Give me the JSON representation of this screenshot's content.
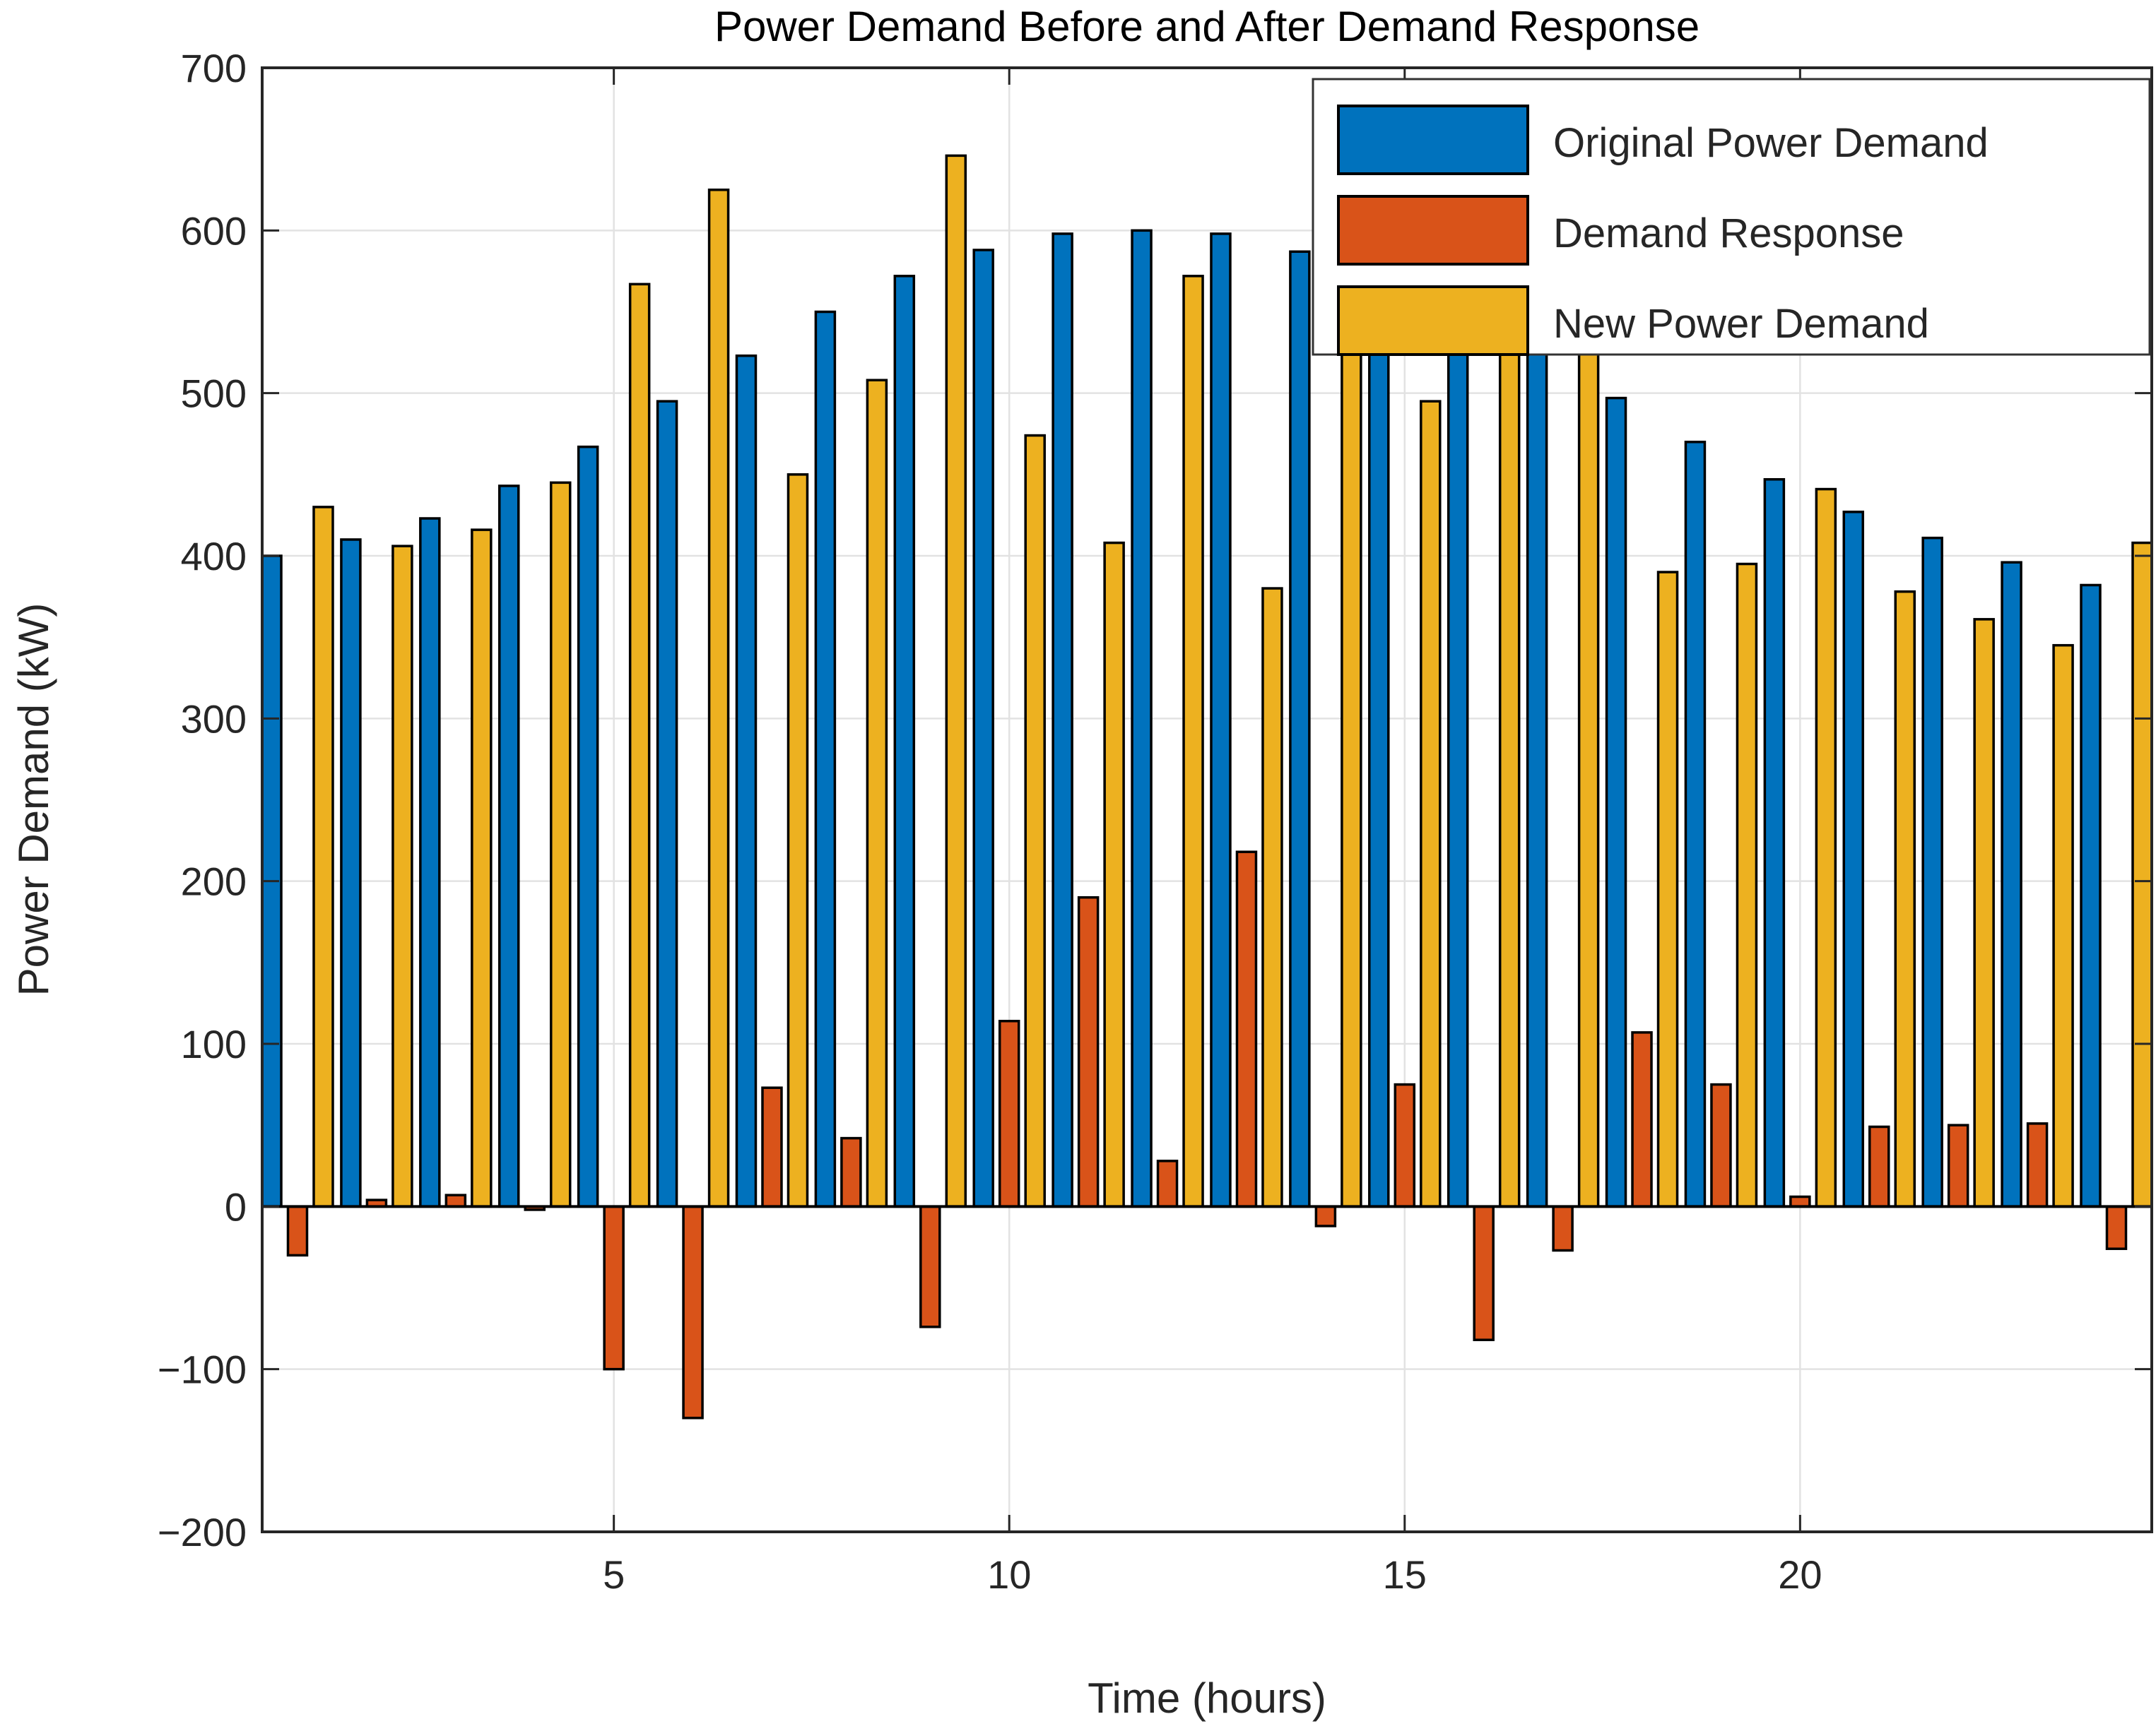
{
  "chart_data": {
    "type": "bar",
    "title": "Power Demand Before and After Demand Response",
    "xlabel": "Time (hours)",
    "ylabel": "Power Demand (kW)",
    "categories": [
      1,
      2,
      3,
      4,
      5,
      6,
      7,
      8,
      9,
      10,
      11,
      12,
      13,
      14,
      15,
      16,
      17,
      18,
      19,
      20,
      21,
      22,
      23,
      24
    ],
    "series": [
      {
        "name": "Original Power Demand",
        "color": "#0072BD",
        "values": [
          400,
          410,
          423,
          443,
          467,
          495,
          523,
          550,
          572,
          588,
          598,
          600,
          598,
          587,
          570,
          545,
          525,
          497,
          470,
          447,
          427,
          411,
          396,
          382
        ]
      },
      {
        "name": "Demand Response",
        "color": "#D95319",
        "values": [
          -30,
          4,
          7,
          -2,
          -100,
          -130,
          73,
          42,
          -74,
          114,
          190,
          28,
          218,
          -12,
          75,
          -82,
          -27,
          107,
          75,
          6,
          49,
          50,
          51,
          -26
        ]
      },
      {
        "name": "New Power Demand",
        "color": "#EDB120",
        "values": [
          430,
          406,
          416,
          445,
          567,
          625,
          450,
          508,
          646,
          474,
          408,
          572,
          380,
          599,
          495,
          627,
          552,
          390,
          395,
          441,
          378,
          361,
          345,
          408
        ]
      }
    ],
    "ylim": [
      -200,
      700
    ],
    "yticks": [
      -200,
      -100,
      0,
      100,
      200,
      300,
      400,
      500,
      600,
      700
    ],
    "xticks": [
      5,
      10,
      15,
      20
    ],
    "grid": true,
    "legend_position": "top-right",
    "colors": {
      "background": "#ffffff",
      "axis": "#262626",
      "grid": "#e2e2e2",
      "bar_edge": "#000000",
      "baseline": "#000000",
      "legend_border": "#333333"
    }
  }
}
